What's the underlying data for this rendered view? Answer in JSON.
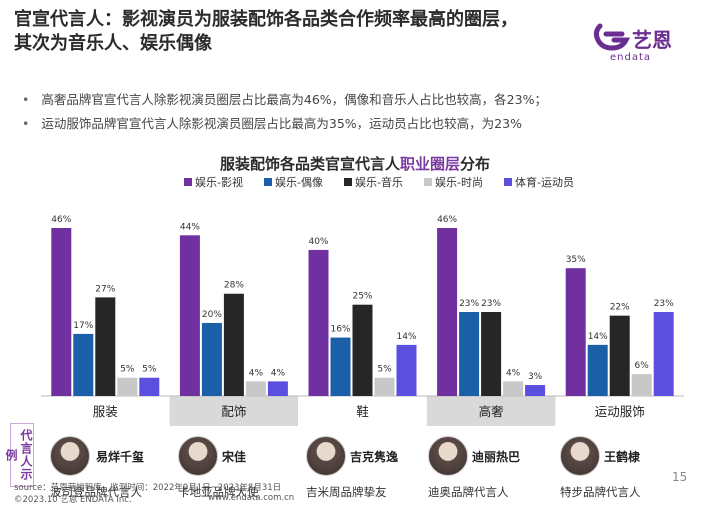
{
  "header": {
    "title_line1": "官宣代言人：影视演员为服装配饰各品类合作频率最高的圈层，",
    "title_line2": "其次为音乐人、娱乐偶像"
  },
  "logo": {
    "text": "艺恩",
    "sub": "endata",
    "color": "#6a2d91"
  },
  "bullets": [
    "高奢品牌官宣代言人除影视演员圈层占比最高为46%，偶像和音乐人占比也较高，各23%；",
    "运动服饰品牌官宣代言人除影视演员圈层占比最高为35%，运动员占比也较高，为23%"
  ],
  "chart_title": {
    "part1": "服装配饰各品类官宣代言人",
    "highlight": "职业圈层",
    "part2": "分布"
  },
  "chart_data": {
    "type": "bar",
    "categories": [
      "服装",
      "配饰",
      "鞋",
      "高奢",
      "运动服饰"
    ],
    "series": [
      {
        "name": "娱乐-影视",
        "color": "#7030a0",
        "values": [
          46,
          44,
          40,
          46,
          35
        ]
      },
      {
        "name": "娱乐-偶像",
        "color": "#1b5fa8",
        "values": [
          17,
          20,
          16,
          23,
          14
        ]
      },
      {
        "name": "娱乐-音乐",
        "color": "#262626",
        "values": [
          27,
          28,
          25,
          23,
          22
        ]
      },
      {
        "name": "娱乐-时尚",
        "color": "#c8c8c8",
        "values": [
          5,
          4,
          5,
          4,
          6
        ]
      },
      {
        "name": "体育-运动员",
        "color": "#5b4fe0",
        "values": [
          5,
          4,
          14,
          3,
          23
        ]
      }
    ],
    "unit": "%",
    "ylim": [
      0,
      50
    ],
    "legend": "top",
    "category_band_colors": [
      "#ffffff",
      "#d9d9d9",
      "#ffffff",
      "#d9d9d9",
      "#ffffff"
    ]
  },
  "spokespeople": {
    "label": "代言人示例",
    "items": [
      {
        "name": "易烊千玺",
        "role": "波司登品牌代言人"
      },
      {
        "name": "宋佳",
        "role": "卡地亚品牌大使"
      },
      {
        "name": "吉克隽逸",
        "role": "吉米周品牌挚友"
      },
      {
        "name": "迪丽热巴",
        "role": "迪奥品牌代言人"
      },
      {
        "name": "王鹤棣",
        "role": "特步品牌代言人"
      }
    ]
  },
  "footer": {
    "source": "source：艺恩营销智库，监测时间：2022年9月1日~2023年8月31日",
    "copyright": "©2023.10  艺恩  ENDATA Inc.",
    "website": "www.endata.com.cn",
    "page": "15"
  }
}
